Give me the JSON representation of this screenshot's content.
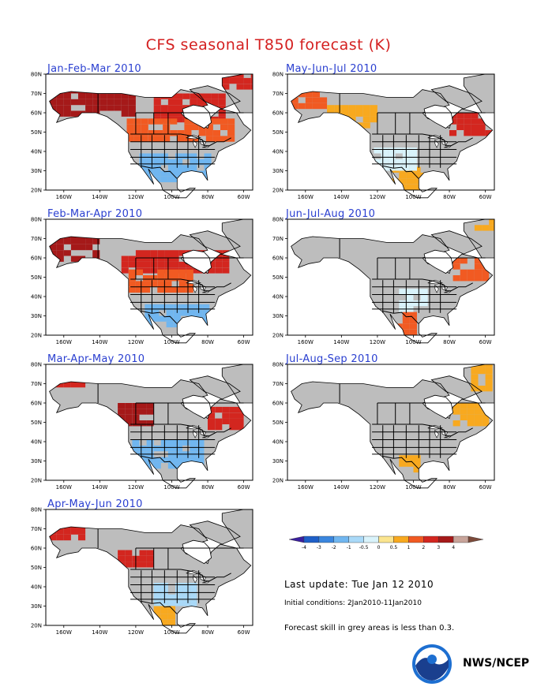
{
  "title": "CFS seasonal T850 forecast (K)",
  "colors": {
    "title": "#d42020",
    "panel_title": "#2a3fd0",
    "ocean": "#ffffff",
    "land": "#ffffff",
    "low_skill": "#bdbdbd"
  },
  "panels": [
    {
      "id": "jfm",
      "label": "Jan-Feb-Mar 2010"
    },
    {
      "id": "mjj",
      "label": "May-Jun-Jul 2010"
    },
    {
      "id": "fma",
      "label": "Feb-Mar-Apr 2010"
    },
    {
      "id": "jja",
      "label": "Jun-Jul-Aug 2010"
    },
    {
      "id": "mam",
      "label": "Mar-Apr-May 2010"
    },
    {
      "id": "jas",
      "label": "Jul-Aug-Sep 2010"
    },
    {
      "id": "amj",
      "label": "Apr-May-Jun 2010"
    }
  ],
  "chart_data": {
    "type": "heatmap",
    "title": "CFS seasonal T850 forecast (K)",
    "units": "K",
    "y_ticks": [
      "80N",
      "70N",
      "60N",
      "50N",
      "40N",
      "30N",
      "20N"
    ],
    "x_ticks": [
      "160W",
      "140W",
      "120W",
      "100W",
      "80W",
      "60W"
    ],
    "xlim": [
      -170,
      -55
    ],
    "ylim": [
      20,
      80
    ],
    "colorbar": {
      "boundaries": [
        "-4",
        "-3",
        "-2",
        "-1",
        "-0.5",
        "0",
        "0.5",
        "1",
        "2",
        "3",
        "4"
      ],
      "colors": [
        "#3a1f9e",
        "#1e5fc8",
        "#3a86de",
        "#70b6f0",
        "#a9d9f8",
        "#d9f3fb",
        "#fbe58f",
        "#f8a91f",
        "#f15a22",
        "#d3261f",
        "#a51919",
        "#c8a49a",
        "#7c4a3a"
      ],
      "note": "Forecast skill in grey areas is less than 0.3."
    },
    "panels": [
      {
        "id": "jfm",
        "label": "Jan-Feb-Mar 2010",
        "anomalies": [
          {
            "region": "Alaska / Yukon",
            "lat": [
              58,
              72
            ],
            "lon": [
              -168,
              -120
            ],
            "value": "3 to 4"
          },
          {
            "region": "Hudson Bay / Northern Canada",
            "lat": [
              55,
              70
            ],
            "lon": [
              -110,
              -70
            ],
            "value": "2 to 3"
          },
          {
            "region": "Southern Canada / Northern US",
            "lat": [
              45,
              55
            ],
            "lon": [
              -125,
              -65
            ],
            "value": "1 to 2"
          },
          {
            "region": "Southern US / Mexico",
            "lat": [
              24,
              38
            ],
            "lon": [
              -118,
              -78
            ],
            "value": "-1 to -2"
          },
          {
            "region": "Greenland",
            "lat": [
              72,
              80
            ],
            "lon": [
              -72,
              -55
            ],
            "value": "2 to 3"
          }
        ]
      },
      {
        "id": "mjj",
        "label": "May-Jun-Jul 2010",
        "anomalies": [
          {
            "region": "Western Alaska",
            "lat": [
              62,
              72
            ],
            "lon": [
              -168,
              -148
            ],
            "value": "1 to 2"
          },
          {
            "region": "Southern Alaska / BC",
            "lat": [
              52,
              62
            ],
            "lon": [
              -148,
              -122
            ],
            "value": "0.5 to 1"
          },
          {
            "region": "Quebec / Labrador",
            "lat": [
              48,
              60
            ],
            "lon": [
              -80,
              -58
            ],
            "value": "2 to 3"
          },
          {
            "region": "Mexico",
            "lat": [
              20,
              32
            ],
            "lon": [
              -112,
              -95
            ],
            "value": "0.5 to 1"
          },
          {
            "region": "Southwestern US",
            "lat": [
              30,
              42
            ],
            "lon": [
              -122,
              -100
            ],
            "value": "-0.5 to 0"
          }
        ]
      },
      {
        "id": "fma",
        "label": "Feb-Mar-Apr 2010",
        "anomalies": [
          {
            "region": "Alaska",
            "lat": [
              58,
              72
            ],
            "lon": [
              -168,
              -140
            ],
            "value": "3 to 4"
          },
          {
            "region": "Central Canada",
            "lat": [
              52,
              62
            ],
            "lon": [
              -128,
              -70
            ],
            "value": "2 to 3"
          },
          {
            "region": "Northern US",
            "lat": [
              42,
              52
            ],
            "lon": [
              -124,
              -88
            ],
            "value": "1 to 2"
          },
          {
            "region": "Southern US",
            "lat": [
              24,
              36
            ],
            "lon": [
              -115,
              -80
            ],
            "value": "-1 to -2"
          }
        ]
      },
      {
        "id": "jja",
        "label": "Jun-Jul-Aug 2010",
        "anomalies": [
          {
            "region": "Quebec",
            "lat": [
              48,
              58
            ],
            "lon": [
              -78,
              -60
            ],
            "value": "1 to 2"
          },
          {
            "region": "Mexico",
            "lat": [
              20,
              30
            ],
            "lon": [
              -110,
              -98
            ],
            "value": "1 to 2"
          },
          {
            "region": "Central US",
            "lat": [
              32,
              42
            ],
            "lon": [
              -108,
              -95
            ],
            "value": "-0.5 to 0"
          },
          {
            "region": "Greenland",
            "lat": [
              74,
              80
            ],
            "lon": [
              -66,
              -56
            ],
            "value": "0.5 to 1"
          }
        ]
      },
      {
        "id": "mam",
        "label": "Mar-Apr-May 2010",
        "anomalies": [
          {
            "region": "Alaska",
            "lat": [
              68,
              74
            ],
            "lon": [
              -168,
              -150
            ],
            "value": "2 to 3"
          },
          {
            "region": "BC / Alberta",
            "lat": [
              48,
              58
            ],
            "lon": [
              -130,
              -110
            ],
            "value": "3 to 4"
          },
          {
            "region": "Quebec",
            "lat": [
              46,
              56
            ],
            "lon": [
              -80,
              -60
            ],
            "value": "2 to 3"
          },
          {
            "region": "Southern US",
            "lat": [
              26,
              40
            ],
            "lon": [
              -122,
              -82
            ],
            "value": "-1 to -2"
          }
        ]
      },
      {
        "id": "jas",
        "label": "Jul-Aug-Sep 2010",
        "anomalies": [
          {
            "region": "Quebec / Labrador",
            "lat": [
              48,
              60
            ],
            "lon": [
              -78,
              -58
            ],
            "value": "0.5 to 1"
          },
          {
            "region": "Greenland",
            "lat": [
              66,
              80
            ],
            "lon": [
              -68,
              -56
            ],
            "value": "0.5 to 1"
          },
          {
            "region": "Northern Mexico",
            "lat": [
              24,
              32
            ],
            "lon": [
              -108,
              -98
            ],
            "value": "0.5 to 1"
          }
        ]
      },
      {
        "id": "amj",
        "label": "Apr-May-Jun 2010",
        "anomalies": [
          {
            "region": "Alaska",
            "lat": [
              64,
              72
            ],
            "lon": [
              -168,
              -150
            ],
            "value": "2 to 3"
          },
          {
            "region": "BC / Alberta",
            "lat": [
              50,
              58
            ],
            "lon": [
              -130,
              -110
            ],
            "value": "2 to 3"
          },
          {
            "region": "Mexico",
            "lat": [
              20,
              30
            ],
            "lon": [
              -110,
              -98
            ],
            "value": "0.5 to 1"
          },
          {
            "region": "Central US",
            "lat": [
              30,
              42
            ],
            "lon": [
              -110,
              -88
            ],
            "value": "-0.5 to -1"
          }
        ]
      }
    ]
  },
  "footer": {
    "last_update": "Last update: Tue Jan 12 2010",
    "initial_conditions": "Initial conditions: 2Jan2010-11Jan2010",
    "skill_note": "Forecast skill in grey areas is less than 0.3.",
    "agency": "NWS/NCEP",
    "logo_icon": "noaa-logo-icon"
  }
}
